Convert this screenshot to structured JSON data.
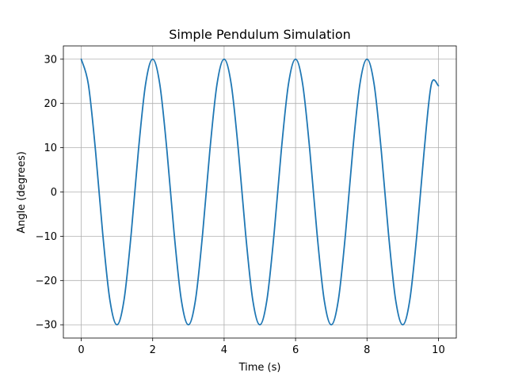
{
  "chart_data": {
    "type": "line",
    "title": "Simple Pendulum Simulation",
    "xlabel": "Time (s)",
    "ylabel": "Angle (degrees)",
    "xlim": [
      -0.5,
      10.5
    ],
    "ylim": [
      -33,
      33
    ],
    "xticks": [
      0,
      2,
      4,
      6,
      8,
      10
    ],
    "yticks": [
      -30,
      -20,
      -10,
      0,
      10,
      20,
      30
    ],
    "xtick_labels": [
      "0",
      "2",
      "4",
      "6",
      "8",
      "10"
    ],
    "ytick_labels": [
      "−30",
      "−20",
      "−10",
      "0",
      "10",
      "20",
      "30"
    ],
    "grid": true,
    "legend": "none",
    "colors": {
      "series": "#1f77b4",
      "grid": "#b0b0b0",
      "axes": "#000000"
    },
    "series": [
      {
        "x": [
          0.0,
          0.2,
          0.4,
          0.6,
          0.8,
          1.0,
          1.2,
          1.4,
          1.6,
          1.8,
          2.0,
          2.2,
          2.4,
          2.6,
          2.8,
          3.0,
          3.2,
          3.4,
          3.6,
          3.8,
          4.0,
          4.2,
          4.4,
          4.6,
          4.8,
          5.0,
          5.2,
          5.4,
          5.6,
          5.8,
          6.0,
          6.2,
          6.4,
          6.6,
          6.8,
          7.0,
          7.2,
          7.4,
          7.6,
          7.8,
          8.0,
          8.2,
          8.4,
          8.6,
          8.8,
          9.0,
          9.2,
          9.4,
          9.6,
          9.8,
          10.0
        ],
        "y": [
          30.0,
          24.3,
          9.3,
          -9.3,
          -24.3,
          -30.0,
          -24.3,
          -9.3,
          9.3,
          24.3,
          30.0,
          24.3,
          9.3,
          -9.3,
          -24.3,
          -30.0,
          -24.3,
          -9.3,
          9.3,
          24.3,
          30.0,
          24.3,
          9.3,
          -9.3,
          -24.3,
          -30.0,
          -24.3,
          -9.3,
          9.3,
          24.3,
          30.0,
          24.3,
          9.3,
          -9.3,
          -24.3,
          -30.0,
          -24.3,
          -9.3,
          9.3,
          24.3,
          30.0,
          24.3,
          9.3,
          -9.3,
          -24.3,
          -30.0,
          -24.3,
          -9.3,
          9.3,
          24.3,
          24.0
        ]
      }
    ]
  }
}
